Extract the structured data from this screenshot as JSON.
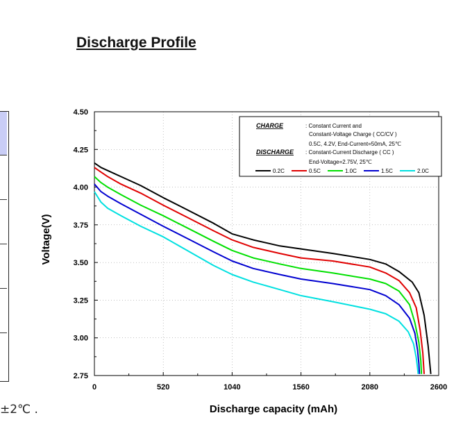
{
  "page_title": "Discharge Profile",
  "fragment_text": "±2℃ .",
  "chart_data": {
    "type": "line",
    "xlabel": "Discharge capacity (mAh)",
    "ylabel": "Voltage(V)",
    "xlim": [
      0,
      2600
    ],
    "ylim": [
      2.75,
      4.5
    ],
    "x_ticks": [
      "0",
      "520",
      "1040",
      "1560",
      "2080",
      "2600"
    ],
    "y_ticks": [
      "2.75",
      "3.00",
      "3.25",
      "3.50",
      "3.75",
      "4.00",
      "4.25",
      "4.50"
    ],
    "grid": true,
    "legend_position": "top-right",
    "legend": {
      "charge_label": "CHARGE",
      "charge_line1": ": Constant Current and",
      "charge_line2": "Constant-Voltage Charge ( CC/CV )",
      "charge_line3": "0.5C, 4.2V, End-Current=50mA, 25℃",
      "discharge_label": "DISCHARGE",
      "discharge_line1": ": Constant-Current Discharge ( CC )",
      "discharge_line2": "End-Voltage=2.75V, 25℃"
    },
    "series": [
      {
        "name": "0.2C",
        "color": "#000000",
        "points": [
          [
            0,
            4.16
          ],
          [
            50,
            4.13
          ],
          [
            100,
            4.11
          ],
          [
            200,
            4.07
          ],
          [
            350,
            4.01
          ],
          [
            520,
            3.93
          ],
          [
            700,
            3.85
          ],
          [
            900,
            3.76
          ],
          [
            1040,
            3.69
          ],
          [
            1200,
            3.65
          ],
          [
            1400,
            3.61
          ],
          [
            1560,
            3.59
          ],
          [
            1800,
            3.56
          ],
          [
            2080,
            3.52
          ],
          [
            2200,
            3.49
          ],
          [
            2300,
            3.44
          ],
          [
            2400,
            3.37
          ],
          [
            2450,
            3.3
          ],
          [
            2490,
            3.15
          ],
          [
            2520,
            2.95
          ],
          [
            2540,
            2.76
          ]
        ]
      },
      {
        "name": "0.5C",
        "color": "#e00000",
        "points": [
          [
            0,
            4.13
          ],
          [
            50,
            4.1
          ],
          [
            100,
            4.07
          ],
          [
            200,
            4.02
          ],
          [
            350,
            3.96
          ],
          [
            520,
            3.88
          ],
          [
            700,
            3.8
          ],
          [
            900,
            3.71
          ],
          [
            1040,
            3.65
          ],
          [
            1200,
            3.6
          ],
          [
            1400,
            3.56
          ],
          [
            1560,
            3.53
          ],
          [
            1800,
            3.51
          ],
          [
            2080,
            3.47
          ],
          [
            2200,
            3.43
          ],
          [
            2300,
            3.38
          ],
          [
            2380,
            3.3
          ],
          [
            2430,
            3.2
          ],
          [
            2460,
            3.05
          ],
          [
            2480,
            2.9
          ],
          [
            2490,
            2.76
          ]
        ]
      },
      {
        "name": "1.0C",
        "color": "#00e000",
        "points": [
          [
            0,
            4.07
          ],
          [
            50,
            4.03
          ],
          [
            100,
            4.0
          ],
          [
            200,
            3.95
          ],
          [
            350,
            3.88
          ],
          [
            520,
            3.81
          ],
          [
            700,
            3.73
          ],
          [
            900,
            3.64
          ],
          [
            1040,
            3.58
          ],
          [
            1200,
            3.53
          ],
          [
            1400,
            3.49
          ],
          [
            1560,
            3.46
          ],
          [
            1800,
            3.43
          ],
          [
            2080,
            3.39
          ],
          [
            2200,
            3.36
          ],
          [
            2300,
            3.31
          ],
          [
            2380,
            3.22
          ],
          [
            2420,
            3.1
          ],
          [
            2450,
            2.97
          ],
          [
            2465,
            2.85
          ],
          [
            2470,
            2.76
          ]
        ]
      },
      {
        "name": "1.5C",
        "color": "#0000d0",
        "points": [
          [
            0,
            4.02
          ],
          [
            50,
            3.97
          ],
          [
            100,
            3.94
          ],
          [
            200,
            3.89
          ],
          [
            350,
            3.82
          ],
          [
            520,
            3.74
          ],
          [
            700,
            3.66
          ],
          [
            900,
            3.57
          ],
          [
            1040,
            3.51
          ],
          [
            1200,
            3.46
          ],
          [
            1400,
            3.42
          ],
          [
            1560,
            3.39
          ],
          [
            1800,
            3.36
          ],
          [
            2080,
            3.32
          ],
          [
            2200,
            3.28
          ],
          [
            2300,
            3.22
          ],
          [
            2380,
            3.13
          ],
          [
            2420,
            3.03
          ],
          [
            2440,
            2.92
          ],
          [
            2450,
            2.83
          ],
          [
            2455,
            2.76
          ]
        ]
      },
      {
        "name": "2.0C",
        "color": "#00e0e0",
        "points": [
          [
            0,
            3.97
          ],
          [
            50,
            3.9
          ],
          [
            100,
            3.86
          ],
          [
            200,
            3.81
          ],
          [
            350,
            3.74
          ],
          [
            520,
            3.67
          ],
          [
            700,
            3.58
          ],
          [
            900,
            3.48
          ],
          [
            1040,
            3.42
          ],
          [
            1200,
            3.37
          ],
          [
            1400,
            3.32
          ],
          [
            1560,
            3.28
          ],
          [
            1800,
            3.24
          ],
          [
            2080,
            3.19
          ],
          [
            2200,
            3.16
          ],
          [
            2300,
            3.11
          ],
          [
            2370,
            3.04
          ],
          [
            2410,
            2.96
          ],
          [
            2430,
            2.87
          ],
          [
            2440,
            2.8
          ],
          [
            2445,
            2.76
          ]
        ]
      }
    ]
  }
}
